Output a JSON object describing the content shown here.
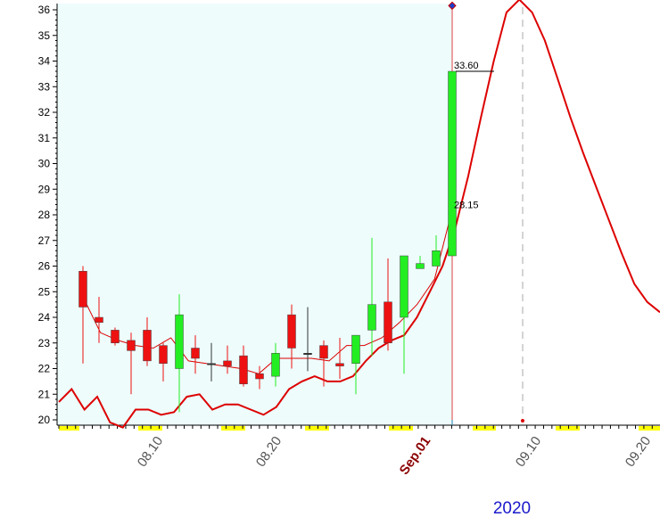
{
  "chart_data": {
    "type": "candlestick",
    "y_axis": {
      "min": 20,
      "max": 36,
      "ticks": [
        "20",
        "21",
        "22",
        "23",
        "24",
        "25",
        "26",
        "27",
        "28",
        "29",
        "30",
        "31",
        "32",
        "33",
        "34",
        "35",
        "36"
      ]
    },
    "x_axis": {
      "tick_labels": [
        "08.10",
        "08.20",
        "Sep.01",
        "09.10",
        "09.20"
      ],
      "special_label": "Sep.01",
      "year_label": "2020"
    },
    "candles": [
      {
        "o": 25.8,
        "c": 24.4,
        "h": 26.0,
        "l": 22.2
      },
      {
        "o": 24.0,
        "c": 23.8,
        "h": 24.8,
        "l": 23.0
      },
      {
        "o": 23.5,
        "c": 23.0,
        "h": 23.6,
        "l": 22.9
      },
      {
        "o": 23.1,
        "c": 22.7,
        "h": 23.4,
        "l": 21.0
      },
      {
        "o": 23.5,
        "c": 22.3,
        "h": 24.0,
        "l": 22.1
      },
      {
        "o": 22.9,
        "c": 22.2,
        "h": 23.0,
        "l": 21.5
      },
      {
        "o": 22.0,
        "c": 24.1,
        "h": 24.9,
        "l": 20.3
      },
      {
        "o": 22.8,
        "c": 22.4,
        "h": 23.3,
        "l": 21.8
      },
      {
        "o": 22.2,
        "c": 22.2,
        "h": 23.0,
        "l": 21.5
      },
      {
        "o": 22.3,
        "c": 22.1,
        "h": 22.9,
        "l": 21.8
      },
      {
        "o": 22.5,
        "c": 21.4,
        "h": 22.9,
        "l": 21.3
      },
      {
        "o": 21.8,
        "c": 21.6,
        "h": 22.1,
        "l": 21.2
      },
      {
        "o": 21.7,
        "c": 22.6,
        "h": 23.0,
        "l": 21.3
      },
      {
        "o": 24.1,
        "c": 22.8,
        "h": 24.5,
        "l": 22.0
      },
      {
        "o": 22.6,
        "c": 22.6,
        "h": 24.4,
        "l": 21.9
      },
      {
        "o": 22.9,
        "c": 22.4,
        "h": 23.1,
        "l": 21.3
      },
      {
        "o": 22.2,
        "c": 22.1,
        "h": 23.2,
        "l": 21.6
      },
      {
        "o": 22.2,
        "c": 23.3,
        "h": 23.3,
        "l": 21.0
      },
      {
        "o": 23.5,
        "c": 24.5,
        "h": 27.1,
        "l": 22.5
      },
      {
        "o": 24.6,
        "c": 23.0,
        "h": 26.3,
        "l": 22.7
      },
      {
        "o": 24.0,
        "c": 26.4,
        "h": 26.4,
        "l": 21.8
      },
      {
        "o": 25.9,
        "c": 26.1,
        "h": 26.4,
        "l": 25.9
      },
      {
        "o": 26.0,
        "c": 26.6,
        "h": 27.2,
        "l": 26.0
      },
      {
        "o": 26.4,
        "c": 33.6,
        "h": 36.3,
        "l": 20.0
      }
    ],
    "series": [
      {
        "values": [
          20.7,
          21.2,
          20.4,
          20.9,
          19.9,
          19.7,
          20.4,
          20.4,
          20.2,
          20.3,
          20.9,
          21.0,
          20.4,
          20.6,
          20.6,
          20.4,
          20.2,
          20.5,
          21.2,
          21.5,
          21.7,
          21.5,
          21.5,
          21.7,
          22.3,
          22.8,
          23.1,
          23.3,
          24.0,
          25.0,
          26.0,
          27.5,
          29.5,
          31.8,
          34.0,
          35.9,
          36.4,
          35.9,
          34.8,
          33.3,
          31.8,
          30.4,
          29.1,
          27.8,
          26.5,
          25.3,
          24.6,
          24.2
        ]
      },
      {
        "values": [
          24.8,
          23.4,
          23.1,
          22.9,
          22.8,
          23.2,
          22.3,
          22.2,
          22.1,
          22.0,
          21.8,
          22.4,
          22.4,
          22.4,
          22.3,
          22.9,
          22.9,
          23.2,
          23.8,
          24.5,
          25.5,
          28.2
        ]
      }
    ],
    "annotations": [
      {
        "text": "33.60",
        "value": 33.6
      },
      {
        "text": "28.15",
        "value": 28.15
      }
    ],
    "colors": {
      "up": "#22ee22",
      "down": "#ee1111",
      "line": "#dd0000",
      "plot_bg": "#eefcfc",
      "future_bg": "#ffffff",
      "weekend": "#ffff00",
      "year_text": "#1a1acc",
      "special_tick": "#8b0000"
    },
    "grid": false,
    "legend": "none"
  }
}
